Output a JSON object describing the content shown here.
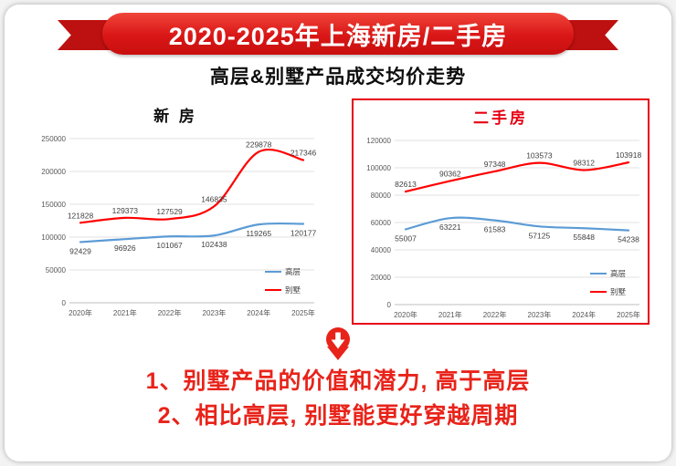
{
  "banner": {
    "title": "2020-2025年上海新房/二手房"
  },
  "subtitle": "高层&别墅产品成交均价走势",
  "conclusions": [
    "1、别墅产品的价值和潜力, 高于高层",
    "2、相比高层, 别墅能更好穿越周期"
  ],
  "colors": {
    "accent_red": "#e60012",
    "banner_red": "#d91616",
    "ribbon_dark_red": "#bd1010",
    "line_blue": "#5b9bd5",
    "line_red": "#ff0000",
    "conclusion_red": "#e8231a",
    "grid_gray": "#e0e0e0"
  },
  "icons": {
    "down_arrow": "red-down-arrow"
  },
  "chart_data": [
    {
      "type": "line",
      "title": "新 房",
      "categories": [
        "2020年",
        "2021年",
        "2022年",
        "2023年",
        "2024年",
        "2025年"
      ],
      "series": [
        {
          "name": "高层",
          "color": "#5b9bd5",
          "label_position": "below",
          "values": [
            92429,
            96926,
            101067,
            102438,
            119265,
            120177
          ]
        },
        {
          "name": "别墅",
          "color": "#ff0000",
          "label_position": "above",
          "values": [
            121828,
            129373,
            127529,
            146835,
            229878,
            217346
          ]
        }
      ],
      "ylim": [
        0,
        250000
      ],
      "ytick_step": 50000,
      "grid": true,
      "legend_position": "right"
    },
    {
      "type": "line",
      "title": "二手房",
      "categories": [
        "2020年",
        "2021年",
        "2022年",
        "2023年",
        "2024年",
        "2025年"
      ],
      "series": [
        {
          "name": "高层",
          "color": "#5b9bd5",
          "label_position": "below",
          "values": [
            55007,
            63221,
            61583,
            57125,
            55848,
            54238
          ]
        },
        {
          "name": "别墅",
          "color": "#ff0000",
          "label_position": "above",
          "values": [
            82613,
            90362,
            97348,
            103573,
            98312,
            103918
          ]
        }
      ],
      "ylim": [
        0,
        120000
      ],
      "ytick_step": 20000,
      "grid": true,
      "legend_position": "right"
    }
  ]
}
